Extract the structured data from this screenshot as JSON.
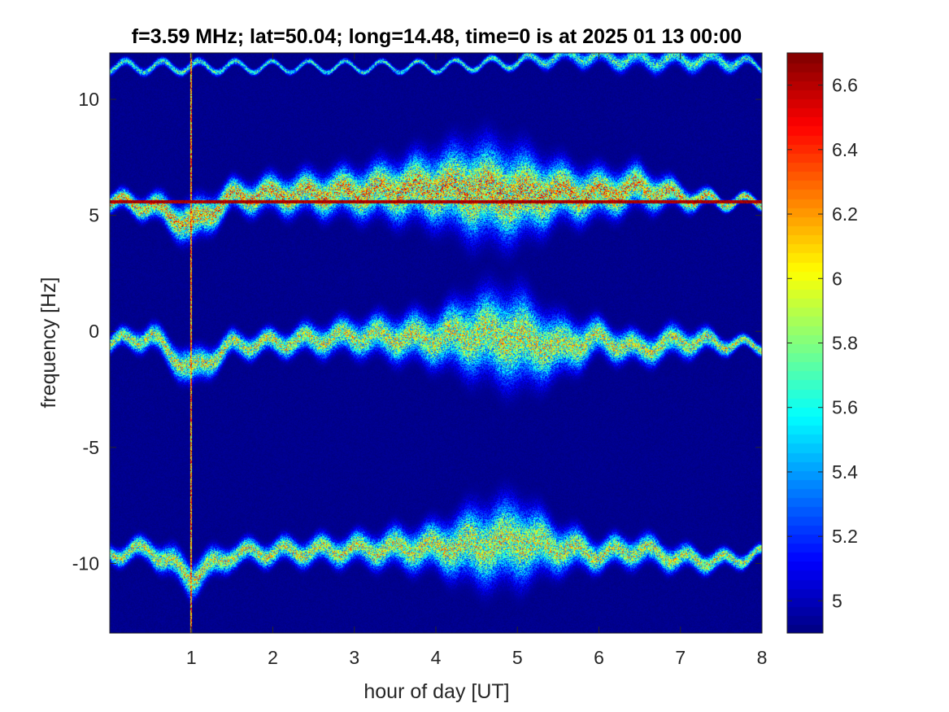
{
  "chart_data": {
    "type": "heatmap",
    "title": "f=3.59 MHz;  lat=50.04; long=14.48, time=0 is at 2025 01 13 00:00",
    "xlabel": "hour of day [UT]",
    "ylabel": "frequency [Hz]",
    "xlim": [
      0,
      8
    ],
    "ylim": [
      -13,
      12
    ],
    "xticks": [
      1,
      2,
      3,
      4,
      5,
      6,
      7,
      8
    ],
    "yticks": [
      -10,
      -5,
      0,
      5,
      10
    ],
    "colormap": "jet",
    "clim": [
      4.9,
      6.7
    ],
    "colorbar_ticks": [
      5,
      5.2,
      5.4,
      5.6,
      5.8,
      6,
      6.2,
      6.4,
      6.6
    ],
    "background_color": "#00008f",
    "features": [
      {
        "kind": "horizontal-line",
        "y": 5.6,
        "x_range": [
          0,
          8
        ],
        "intensity": 6.7
      },
      {
        "kind": "vertical-line",
        "x": 1.0,
        "y_range": [
          -13,
          12
        ],
        "intensity": 6.6
      },
      {
        "kind": "band",
        "center": 5.6,
        "intensity": 6.3,
        "x": [
          0,
          0.5,
          1.0,
          1.5,
          2.0,
          3.0,
          4.0,
          4.5,
          5.0,
          5.5,
          6.0,
          6.5,
          7.0,
          7.5,
          8.0
        ],
        "offset": [
          0,
          -0.2,
          -1.0,
          0.2,
          0.3,
          0.4,
          0.6,
          0.5,
          0.3,
          0.4,
          0.3,
          0.6,
          0.2,
          0,
          0
        ],
        "spread": [
          0.3,
          0.4,
          0.7,
          0.5,
          0.6,
          0.8,
          1.2,
          1.6,
          1.5,
          1.0,
          0.8,
          0.7,
          0.4,
          0.2,
          0.15
        ]
      },
      {
        "kind": "band",
        "center": -0.5,
        "intensity": 6.1,
        "x": [
          0,
          0.5,
          1.0,
          1.5,
          2.0,
          3.0,
          4.0,
          4.5,
          5.0,
          5.5,
          6.0,
          6.5,
          7.0,
          7.5,
          7.8
        ],
        "offset": [
          0,
          0.3,
          -1.2,
          -0.1,
          0,
          0.3,
          0.2,
          0.4,
          0.2,
          -0.2,
          0.2,
          -0.3,
          0.1,
          0,
          -0.1
        ],
        "spread": [
          0.3,
          0.4,
          0.6,
          0.4,
          0.4,
          0.6,
          0.9,
          1.4,
          1.6,
          1.0,
          0.6,
          0.5,
          0.5,
          0.3,
          0.2
        ]
      },
      {
        "kind": "band",
        "center": -9.6,
        "intensity": 6.1,
        "x": [
          0,
          0.5,
          1.0,
          1.5,
          2.0,
          3.0,
          4.0,
          4.5,
          5.0,
          5.5,
          6.0,
          6.5,
          7.0,
          7.5,
          8.0
        ],
        "offset": [
          0,
          0.2,
          -1.0,
          0,
          0.1,
          0.2,
          0.3,
          0.4,
          0.6,
          0.3,
          0,
          0.2,
          -0.2,
          -0.3,
          0
        ],
        "spread": [
          0.3,
          0.4,
          0.6,
          0.4,
          0.4,
          0.5,
          0.8,
          1.3,
          1.4,
          0.8,
          0.5,
          0.5,
          0.4,
          0.3,
          0.2
        ]
      },
      {
        "kind": "band",
        "center": 11.4,
        "intensity": 5.8,
        "x": [
          0,
          1.0,
          2.0,
          3.0,
          4.0,
          5.0,
          5.7,
          6.5,
          7.5,
          8.0
        ],
        "offset": [
          0,
          0,
          0,
          0,
          0,
          0.2,
          0.5,
          0.3,
          0.3,
          0
        ],
        "spread": [
          0.15,
          0.15,
          0.1,
          0.1,
          0.1,
          0.15,
          0.3,
          0.35,
          0.3,
          0.1
        ]
      }
    ]
  }
}
